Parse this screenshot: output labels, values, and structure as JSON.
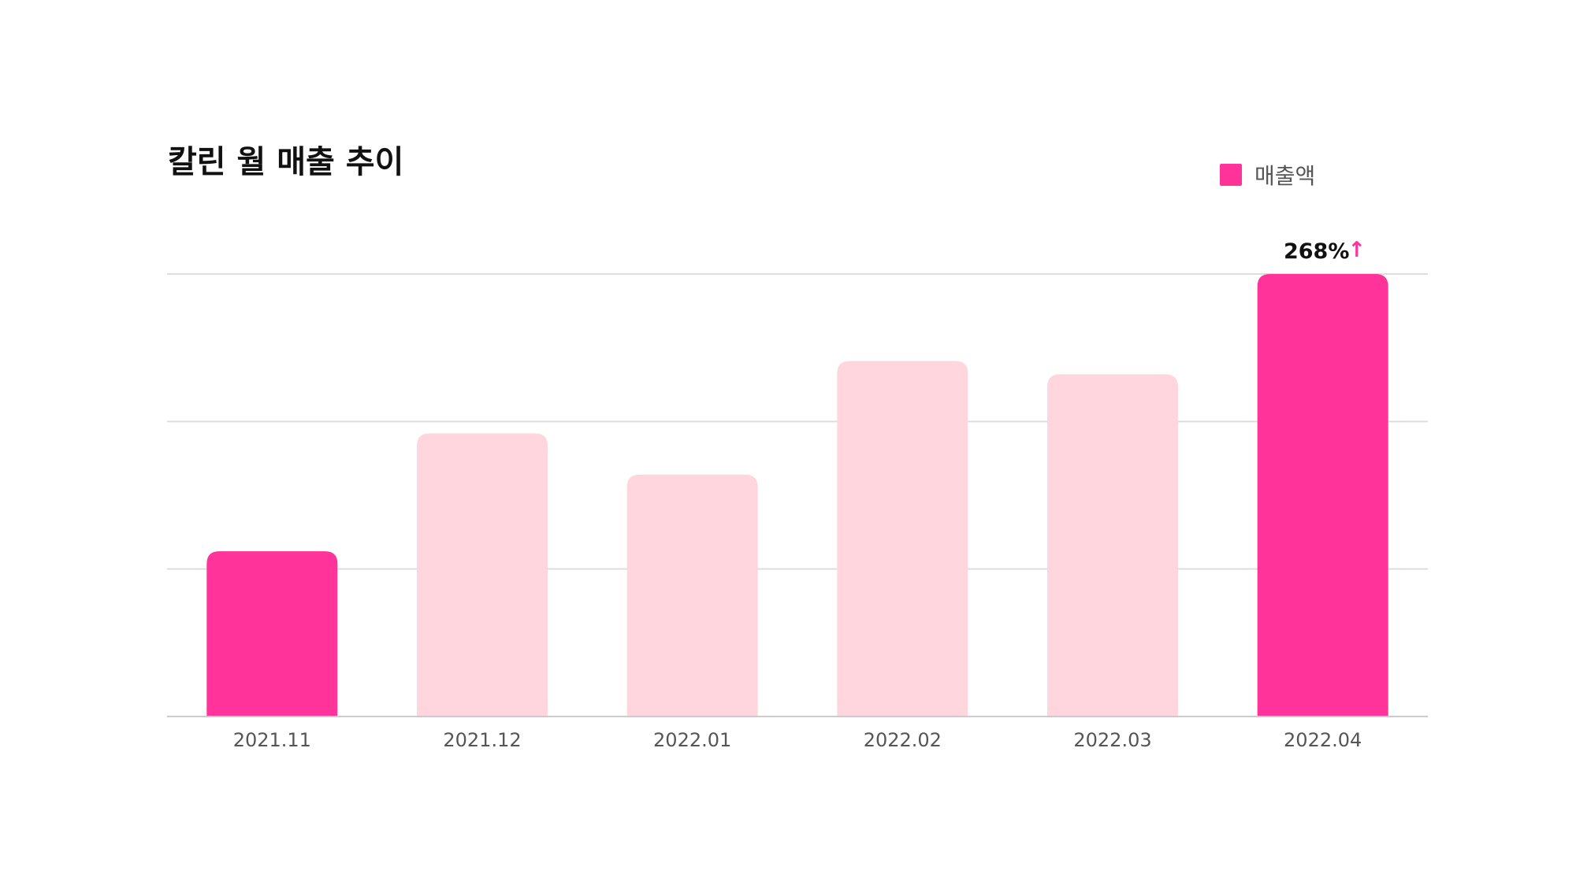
{
  "chart_data": {
    "type": "bar",
    "title": "칼린 월 매출 추이",
    "categories": [
      "2021.11",
      "2021.12",
      "2022.01",
      "2022.02",
      "2022.03",
      "2022.04"
    ],
    "series": [
      {
        "name": "매출액",
        "values": [
          1.12,
          1.92,
          1.64,
          2.41,
          2.32,
          3.0
        ]
      }
    ],
    "highlighted": [
      true,
      false,
      false,
      false,
      false,
      true
    ],
    "ylim": [
      0,
      3
    ],
    "gridlines": [
      1,
      2,
      3
    ],
    "y_tick_labels_shown": false,
    "legend": {
      "label": "매출액",
      "position": "top-right"
    },
    "annotation": {
      "category": "2022.04",
      "text": "268%",
      "arrow": "↑"
    },
    "xlabel": "",
    "ylabel": "",
    "colors": {
      "highlight": "#ff3399",
      "muted": "#ffd6de",
      "arrow": "#ff3399",
      "grid": "#dddddd"
    }
  }
}
